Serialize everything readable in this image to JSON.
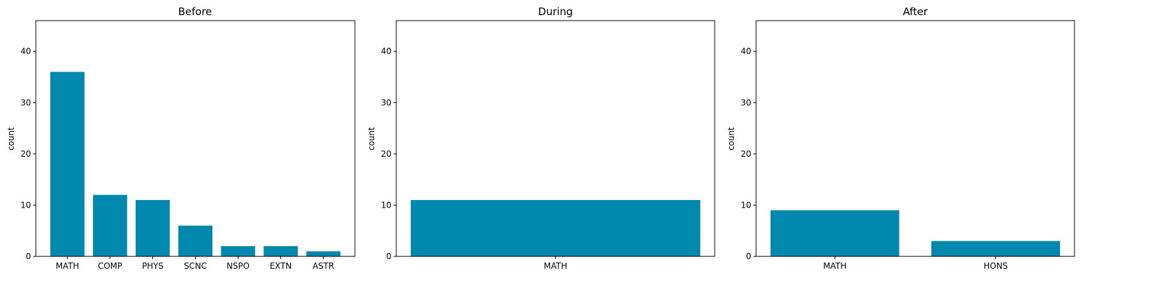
{
  "colors": {
    "bar": "#0088ae",
    "axis": "#000000"
  },
  "chart_data": [
    {
      "type": "bar",
      "title": "Before",
      "xlabel": "",
      "ylabel": "count",
      "ylim": [
        0,
        46
      ],
      "yticks": [
        0,
        10,
        20,
        30,
        40
      ],
      "grid": false,
      "categories": [
        "MATH",
        "COMP",
        "PHYS",
        "SCNC",
        "NSPO",
        "EXTN",
        "ASTR"
      ],
      "values": [
        36,
        12,
        11,
        6,
        2,
        2,
        1
      ]
    },
    {
      "type": "bar",
      "title": "During",
      "xlabel": "",
      "ylabel": "count",
      "ylim": [
        0,
        46
      ],
      "yticks": [
        0,
        10,
        20,
        30,
        40
      ],
      "grid": false,
      "categories": [
        "MATH"
      ],
      "values": [
        11
      ]
    },
    {
      "type": "bar",
      "title": "After",
      "xlabel": "",
      "ylabel": "count",
      "ylim": [
        0,
        46
      ],
      "yticks": [
        0,
        10,
        20,
        30,
        40
      ],
      "grid": false,
      "categories": [
        "MATH",
        "HONS"
      ],
      "values": [
        9,
        3
      ]
    }
  ]
}
